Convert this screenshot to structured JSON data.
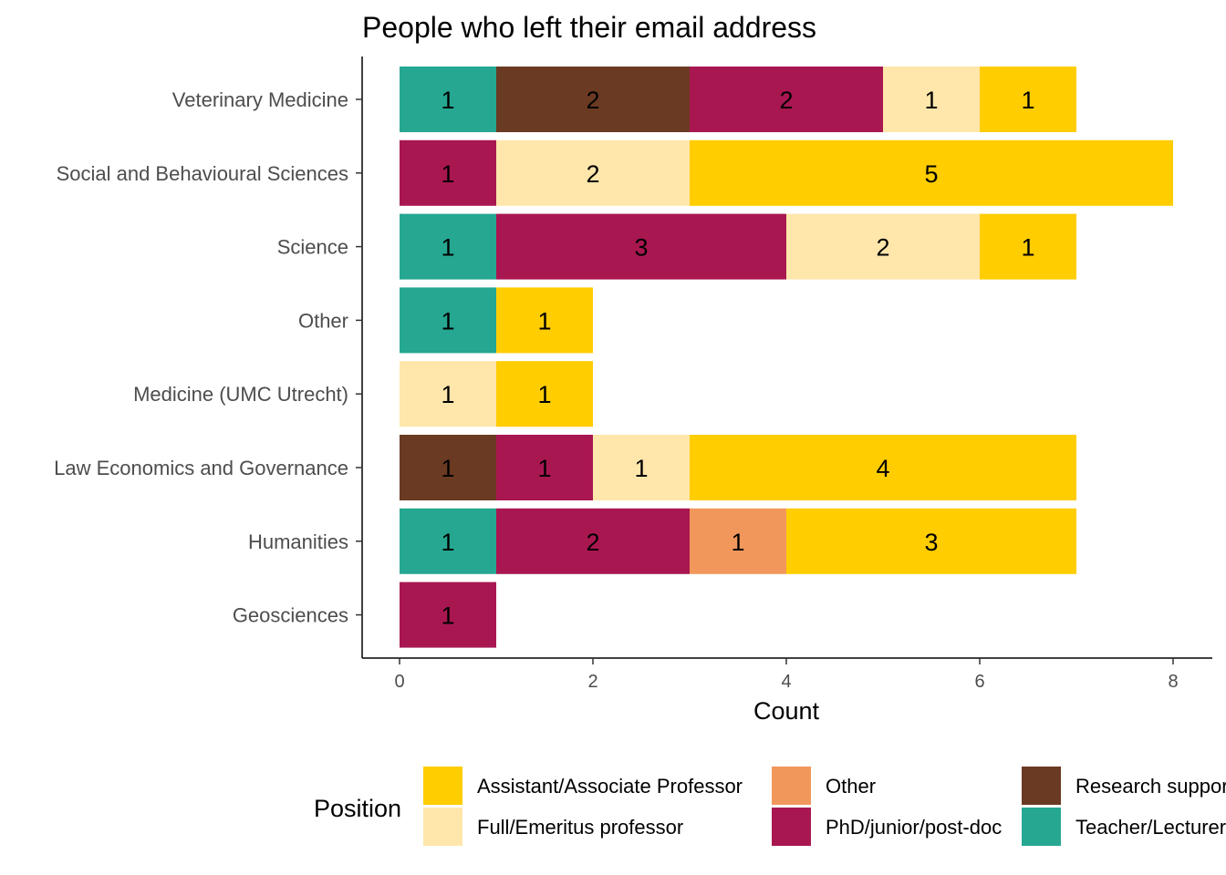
{
  "chart_data": {
    "type": "bar",
    "orientation": "horizontal",
    "stacked": true,
    "title": "People who left their email address",
    "xlabel": "Count",
    "ylabel": "",
    "xlim": [
      0,
      8.4
    ],
    "xticks": [
      0,
      2,
      4,
      6,
      8
    ],
    "grid": false,
    "legend_position": "bottom",
    "legend_title": "Position",
    "categories": [
      "Veterinary Medicine",
      "Social and Behavioural Sciences",
      "Science",
      "Other",
      "Medicine (UMC Utrecht)",
      "Law Economics and Governance",
      "Humanities",
      "Geosciences"
    ],
    "series": [
      {
        "name": "Teacher/Lecturer",
        "color": "#26a792",
        "values": [
          1,
          0,
          1,
          1,
          0,
          0,
          1,
          0
        ]
      },
      {
        "name": "Research support",
        "color": "#6b3a22",
        "values": [
          2,
          0,
          0,
          0,
          0,
          1,
          0,
          0
        ]
      },
      {
        "name": "PhD/junior/post-doc",
        "color": "#a91751",
        "values": [
          2,
          1,
          3,
          0,
          0,
          1,
          2,
          1
        ]
      },
      {
        "name": "Other",
        "color": "#f2975c",
        "values": [
          0,
          0,
          0,
          0,
          0,
          0,
          1,
          0
        ]
      },
      {
        "name": "Full/Emeritus professor",
        "color": "#ffe6ab",
        "values": [
          1,
          2,
          2,
          0,
          1,
          1,
          0,
          0
        ]
      },
      {
        "name": "Assistant/Associate Professor",
        "color": "#ffcd00",
        "values": [
          1,
          5,
          1,
          1,
          1,
          4,
          3,
          0
        ]
      }
    ],
    "legend_order": [
      "Assistant/Associate Professor",
      "Full/Emeritus professor",
      "Other",
      "PhD/junior/post-doc",
      "Research support",
      "Teacher/Lecturer"
    ]
  }
}
